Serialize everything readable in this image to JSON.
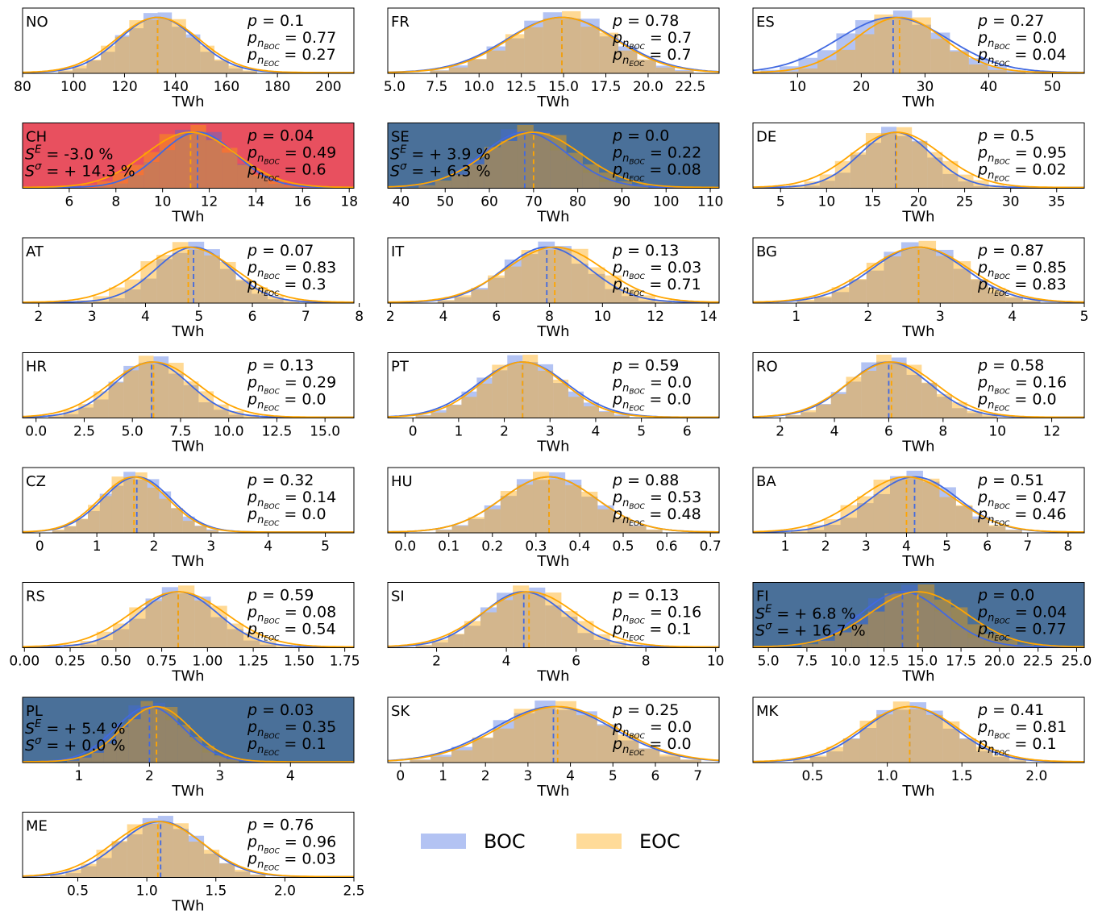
{
  "colors": {
    "boc": "#4169E1",
    "eoc": "#FFA500",
    "boc_fill": "#4169E1",
    "eoc_fill": "#FFA500",
    "red_highlight": "#E8505F",
    "blue_highlight": "#4A7099"
  },
  "legend": {
    "items": [
      {
        "label": "BOC"
      },
      {
        "label": "EOC"
      }
    ]
  },
  "chart_data": [
    {
      "type": "histogram",
      "country": "NO",
      "xlabel": "TWh",
      "xlim": [
        80,
        210
      ],
      "xticks": [
        80,
        100,
        120,
        140,
        160,
        180,
        200
      ],
      "tick_labels": [
        "80",
        "100",
        "120",
        "140",
        "160",
        "180",
        "200"
      ],
      "p": "0.1",
      "p_boc": "0.77",
      "p_eoc": "0.27",
      "boc_mean": 133,
      "eoc_mean": 133,
      "boc_sd": 14,
      "eoc_sd": 15,
      "highlight": "none",
      "s_e": null,
      "s_sigma": null
    },
    {
      "type": "histogram",
      "country": "FR",
      "xlabel": "TWh",
      "xlim": [
        4.6,
        24.2
      ],
      "xticks": [
        5,
        7.5,
        10,
        12.5,
        15,
        17.5,
        20,
        22.5
      ],
      "tick_labels": [
        "5.0",
        "7.5",
        "10.0",
        "12.5",
        "15.0",
        "17.5",
        "20.0",
        "22.5"
      ],
      "p": "0.78",
      "p_boc": "0.7",
      "p_eoc": "0.7",
      "boc_mean": 14.9,
      "eoc_mean": 14.9,
      "boc_sd": 3.0,
      "eoc_sd": 2.9,
      "highlight": "none",
      "s_e": null,
      "s_sigma": null
    },
    {
      "type": "histogram",
      "country": "ES",
      "xlabel": "TWh",
      "xlim": [
        3,
        55
      ],
      "xticks": [
        10,
        20,
        30,
        40,
        50
      ],
      "tick_labels": [
        "10",
        "20",
        "30",
        "40",
        "50"
      ],
      "p": "0.27",
      "p_boc": "0.0",
      "p_eoc": "0.04",
      "boc_mean": 25,
      "eoc_mean": 26,
      "boc_sd": 8,
      "eoc_sd": 6.5,
      "highlight": "none",
      "s_e": null,
      "s_sigma": null
    },
    {
      "type": "histogram",
      "country": "CH",
      "xlabel": "TWh",
      "xlim": [
        4,
        18.2
      ],
      "xticks": [
        6,
        8,
        10,
        12,
        14,
        16,
        18
      ],
      "tick_labels": [
        "6",
        "8",
        "10",
        "12",
        "14",
        "16",
        "18"
      ],
      "p": "0.04",
      "p_boc": "0.49",
      "p_eoc": "0.6",
      "boc_mean": 11.5,
      "eoc_mean": 11.2,
      "boc_sd": 1.5,
      "eoc_sd": 1.8,
      "highlight": "red",
      "s_e": "-3.0 %",
      "s_sigma": "+ 14.3 %"
    },
    {
      "type": "histogram",
      "country": "SE",
      "xlabel": "TWh",
      "xlim": [
        37,
        112
      ],
      "xticks": [
        40,
        50,
        60,
        70,
        80,
        90,
        100,
        110
      ],
      "tick_labels": [
        "40",
        "50",
        "60",
        "70",
        "80",
        "90",
        "100",
        "110"
      ],
      "p": "0.0",
      "p_boc": "0.22",
      "p_eoc": "0.08",
      "boc_mean": 68,
      "eoc_mean": 70,
      "boc_sd": 9,
      "eoc_sd": 10,
      "highlight": "blue",
      "s_e": "+ 3.9 %",
      "s_sigma": "+ 6.3 %"
    },
    {
      "type": "histogram",
      "country": "DE",
      "xlabel": "TWh",
      "xlim": [
        2,
        38
      ],
      "xticks": [
        5,
        10,
        15,
        20,
        25,
        30,
        35
      ],
      "tick_labels": [
        "5",
        "10",
        "15",
        "20",
        "25",
        "30",
        "35"
      ],
      "p": "0.5",
      "p_boc": "0.95",
      "p_eoc": "0.02",
      "boc_mean": 17.5,
      "eoc_mean": 17.6,
      "boc_sd": 3.6,
      "eoc_sd": 4.5,
      "highlight": "none",
      "s_e": null,
      "s_sigma": null
    },
    {
      "type": "histogram",
      "country": "AT",
      "xlabel": "TWh",
      "xlim": [
        1.7,
        7.9
      ],
      "xticks": [
        2,
        3,
        4,
        5,
        6,
        7,
        8
      ],
      "tick_labels": [
        "2",
        "3",
        "4",
        "5",
        "6",
        "7",
        "8"
      ],
      "p": "0.07",
      "p_boc": "0.83",
      "p_eoc": "0.3",
      "boc_mean": 4.9,
      "eoc_mean": 4.8,
      "boc_sd": 0.65,
      "eoc_sd": 0.8,
      "highlight": "none",
      "s_e": null,
      "s_sigma": null
    },
    {
      "type": "histogram",
      "country": "IT",
      "xlabel": "TWh",
      "xlim": [
        1.9,
        14.4
      ],
      "xticks": [
        2,
        4,
        6,
        8,
        10,
        12,
        14
      ],
      "tick_labels": [
        "2",
        "4",
        "6",
        "8",
        "10",
        "12",
        "14"
      ],
      "p": "0.13",
      "p_boc": "0.03",
      "p_eoc": "0.71",
      "boc_mean": 7.9,
      "eoc_mean": 8.2,
      "boc_sd": 1.5,
      "eoc_sd": 1.7,
      "highlight": "none",
      "s_e": null,
      "s_sigma": null
    },
    {
      "type": "histogram",
      "country": "BG",
      "xlabel": "TWh",
      "xlim": [
        0.4,
        5.0
      ],
      "xticks": [
        1,
        2,
        3,
        4,
        5
      ],
      "tick_labels": [
        "1",
        "2",
        "3",
        "4",
        "5"
      ],
      "p": "0.87",
      "p_boc": "0.85",
      "p_eoc": "0.83",
      "boc_mean": 2.7,
      "eoc_mean": 2.7,
      "boc_sd": 0.6,
      "eoc_sd": 0.65,
      "highlight": "none",
      "s_e": null,
      "s_sigma": null
    },
    {
      "type": "histogram",
      "country": "HR",
      "xlabel": "TWh",
      "xlim": [
        -0.7,
        16.5
      ],
      "xticks": [
        0,
        2.5,
        5,
        7.5,
        10,
        12.5,
        15
      ],
      "tick_labels": [
        "0.0",
        "2.5",
        "5.0",
        "7.5",
        "10.0",
        "12.5",
        "15.0"
      ],
      "p": "0.13",
      "p_boc": "0.29",
      "p_eoc": "0.0",
      "boc_mean": 6.0,
      "eoc_mean": 6.1,
      "boc_sd": 1.8,
      "eoc_sd": 2.1,
      "highlight": "none",
      "s_e": null,
      "s_sigma": null
    },
    {
      "type": "histogram",
      "country": "PT",
      "xlabel": "TWh",
      "xlim": [
        -0.55,
        6.7
      ],
      "xticks": [
        0,
        1,
        2,
        3,
        4,
        5,
        6
      ],
      "tick_labels": [
        "0",
        "1",
        "2",
        "3",
        "4",
        "5",
        "6"
      ],
      "p": "0.59",
      "p_boc": "0.0",
      "p_eoc": "0.0",
      "boc_mean": 2.4,
      "eoc_mean": 2.4,
      "boc_sd": 0.9,
      "eoc_sd": 0.85,
      "highlight": "none",
      "s_e": null,
      "s_sigma": null
    },
    {
      "type": "histogram",
      "country": "RO",
      "xlabel": "TWh",
      "xlim": [
        1,
        13.2
      ],
      "xticks": [
        2,
        4,
        6,
        8,
        10,
        12
      ],
      "tick_labels": [
        "2",
        "4",
        "6",
        "8",
        "10",
        "12"
      ],
      "p": "0.58",
      "p_boc": "0.16",
      "p_eoc": "0.0",
      "boc_mean": 6.0,
      "eoc_mean": 6.1,
      "boc_sd": 1.4,
      "eoc_sd": 1.5,
      "highlight": "none",
      "s_e": null,
      "s_sigma": null
    },
    {
      "type": "histogram",
      "country": "CZ",
      "xlabel": "TWh",
      "xlim": [
        -0.3,
        5.5
      ],
      "xticks": [
        0,
        1,
        2,
        3,
        4,
        5
      ],
      "tick_labels": [
        "0",
        "1",
        "2",
        "3",
        "4",
        "5"
      ],
      "p": "0.32",
      "p_boc": "0.14",
      "p_eoc": "0.0",
      "boc_mean": 1.7,
      "eoc_mean": 1.65,
      "boc_sd": 0.55,
      "eoc_sd": 0.55,
      "highlight": "none",
      "s_e": null,
      "s_sigma": null
    },
    {
      "type": "histogram",
      "country": "HU",
      "xlabel": "TWh",
      "xlim": [
        -0.04,
        0.72
      ],
      "xticks": [
        0,
        0.1,
        0.2,
        0.3,
        0.4,
        0.5,
        0.6,
        0.7
      ],
      "tick_labels": [
        "0.0",
        "0.1",
        "0.2",
        "0.3",
        "0.4",
        "0.5",
        "0.6",
        "0.7"
      ],
      "p": "0.88",
      "p_boc": "0.53",
      "p_eoc": "0.48",
      "boc_mean": 0.33,
      "eoc_mean": 0.33,
      "boc_sd": 0.1,
      "eoc_sd": 0.1,
      "highlight": "none",
      "s_e": null,
      "s_sigma": null
    },
    {
      "type": "histogram",
      "country": "BA",
      "xlabel": "TWh",
      "xlim": [
        0.2,
        8.4
      ],
      "xticks": [
        1,
        2,
        3,
        4,
        5,
        6,
        7,
        8
      ],
      "tick_labels": [
        "1",
        "2",
        "3",
        "4",
        "5",
        "6",
        "7",
        "8"
      ],
      "p": "0.51",
      "p_boc": "0.47",
      "p_eoc": "0.46",
      "boc_mean": 4.2,
      "eoc_mean": 4.0,
      "boc_sd": 1.0,
      "eoc_sd": 1.1,
      "highlight": "none",
      "s_e": null,
      "s_sigma": null
    },
    {
      "type": "histogram",
      "country": "RS",
      "xlabel": "TWh",
      "xlim": [
        -0.01,
        1.8
      ],
      "xticks": [
        0,
        0.25,
        0.5,
        0.75,
        1,
        1.25,
        1.5,
        1.75
      ],
      "tick_labels": [
        "0.00",
        "0.25",
        "0.50",
        "0.75",
        "1.00",
        "1.25",
        "1.50",
        "1.75"
      ],
      "p": "0.59",
      "p_boc": "0.08",
      "p_eoc": "0.54",
      "boc_mean": 0.84,
      "eoc_mean": 0.84,
      "boc_sd": 0.2,
      "eoc_sd": 0.24,
      "highlight": "none",
      "s_e": null,
      "s_sigma": null
    },
    {
      "type": "histogram",
      "country": "SI",
      "xlabel": "TWh",
      "xlim": [
        0.6,
        10.1
      ],
      "xticks": [
        2,
        4,
        6,
        8,
        10
      ],
      "tick_labels": [
        "2",
        "4",
        "6",
        "8",
        "10"
      ],
      "p": "0.13",
      "p_boc": "0.16",
      "p_eoc": "0.1",
      "boc_mean": 4.5,
      "eoc_mean": 4.65,
      "boc_sd": 1.1,
      "eoc_sd": 1.25,
      "highlight": "none",
      "s_e": null,
      "s_sigma": null
    },
    {
      "type": "histogram",
      "country": "FI",
      "xlabel": "TWh",
      "xlim": [
        4,
        25.5
      ],
      "xticks": [
        5,
        7.5,
        10,
        12.5,
        15,
        17.5,
        20,
        22.5,
        25
      ],
      "tick_labels": [
        "5.0",
        "7.5",
        "10.0",
        "12.5",
        "15.0",
        "17.5",
        "20.0",
        "22.5",
        "25.0"
      ],
      "p": "0.0",
      "p_boc": "0.04",
      "p_eoc": "0.77",
      "boc_mean": 13.7,
      "eoc_mean": 14.7,
      "boc_sd": 2.5,
      "eoc_sd": 2.9,
      "highlight": "blue",
      "s_e": "+ 6.8 %",
      "s_sigma": "+ 16.7 %"
    },
    {
      "type": "histogram",
      "country": "PL",
      "xlabel": "TWh",
      "xlim": [
        0.2,
        4.9
      ],
      "xticks": [
        1,
        2,
        3,
        4
      ],
      "tick_labels": [
        "1",
        "2",
        "3",
        "4"
      ],
      "p": "0.03",
      "p_boc": "0.35",
      "p_eoc": "0.1",
      "boc_mean": 2.0,
      "eoc_mean": 2.1,
      "boc_sd": 0.45,
      "eoc_sd": 0.45,
      "highlight": "blue",
      "s_e": "+ 5.4 %",
      "s_sigma": "+ 0.0 %"
    },
    {
      "type": "histogram",
      "country": "SK",
      "xlabel": "TWh",
      "xlim": [
        -0.3,
        7.5
      ],
      "xticks": [
        0,
        1,
        2,
        3,
        4,
        5,
        6,
        7
      ],
      "tick_labels": [
        "0",
        "1",
        "2",
        "3",
        "4",
        "5",
        "6",
        "7"
      ],
      "p": "0.25",
      "p_boc": "0.0",
      "p_eoc": "0.0",
      "boc_mean": 3.6,
      "eoc_mean": 3.7,
      "boc_sd": 1.3,
      "eoc_sd": 1.3,
      "highlight": "none",
      "s_e": null,
      "s_sigma": null
    },
    {
      "type": "histogram",
      "country": "MK",
      "xlabel": "TWh",
      "xlim": [
        0.1,
        2.32
      ],
      "xticks": [
        0.5,
        1,
        1.5,
        2
      ],
      "tick_labels": [
        "0.5",
        "1.0",
        "1.5",
        "2.0"
      ],
      "p": "0.41",
      "p_boc": "0.81",
      "p_eoc": "0.1",
      "boc_mean": 1.15,
      "eoc_mean": 1.15,
      "boc_sd": 0.28,
      "eoc_sd": 0.3,
      "highlight": "none",
      "s_e": null,
      "s_sigma": null
    },
    {
      "type": "histogram",
      "country": "ME",
      "xlabel": "TWh",
      "xlim": [
        0.1,
        2.5
      ],
      "xticks": [
        0.5,
        1,
        1.5,
        2,
        2.5
      ],
      "tick_labels": [
        "0.5",
        "1.0",
        "1.5",
        "2.0",
        "2.5"
      ],
      "p": "0.76",
      "p_boc": "0.96",
      "p_eoc": "0.03",
      "boc_mean": 1.1,
      "eoc_mean": 1.08,
      "boc_sd": 0.28,
      "eoc_sd": 0.3,
      "highlight": "none",
      "s_e": null,
      "s_sigma": null
    }
  ]
}
